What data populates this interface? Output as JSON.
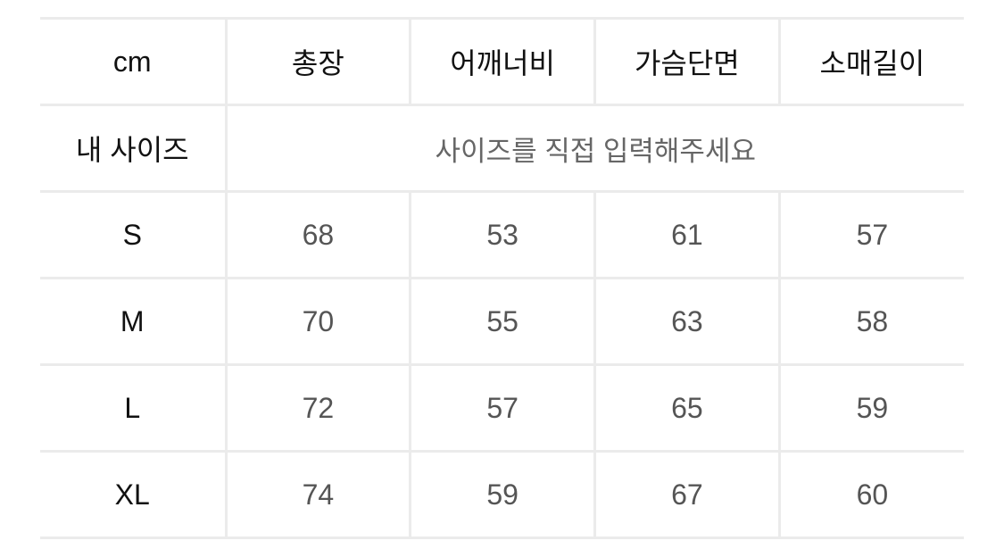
{
  "header": {
    "unit": "cm",
    "columns": [
      "총장",
      "어깨너비",
      "가슴단면",
      "소매길이"
    ]
  },
  "my_size": {
    "label": "내 사이즈",
    "placeholder": "사이즈를 직접 입력해주세요"
  },
  "rows": [
    {
      "size": "S",
      "values": [
        "68",
        "53",
        "61",
        "57"
      ]
    },
    {
      "size": "M",
      "values": [
        "70",
        "55",
        "63",
        "58"
      ]
    },
    {
      "size": "L",
      "values": [
        "72",
        "57",
        "65",
        "59"
      ]
    },
    {
      "size": "XL",
      "values": [
        "74",
        "59",
        "67",
        "60"
      ]
    }
  ]
}
